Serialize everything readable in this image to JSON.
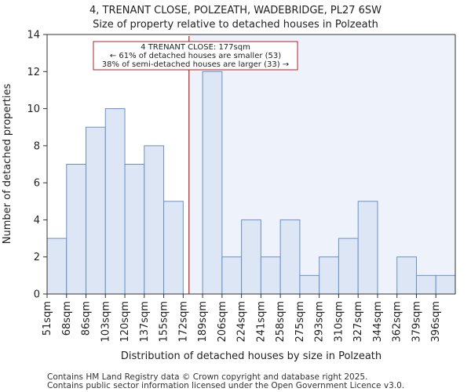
{
  "chart_data": {
    "type": "bar",
    "title": "4, TRENANT CLOSE, POLZEATH, WADEBRIDGE, PL27 6SW",
    "subtitle": "Size of property relative to detached houses in Polzeath",
    "xlabel": "Distribution of detached houses by size in Polzeath",
    "ylabel": "Number of detached properties",
    "categories": [
      "51sqm",
      "68sqm",
      "86sqm",
      "103sqm",
      "120sqm",
      "137sqm",
      "155sqm",
      "172sqm",
      "189sqm",
      "206sqm",
      "224sqm",
      "241sqm",
      "258sqm",
      "275sqm",
      "293sqm",
      "310sqm",
      "327sqm",
      "344sqm",
      "362sqm",
      "379sqm",
      "396sqm"
    ],
    "values": [
      3,
      7,
      9,
      10,
      7,
      8,
      5,
      0,
      12,
      2,
      4,
      2,
      4,
      1,
      2,
      3,
      5,
      0,
      2,
      1,
      1
    ],
    "ylim": [
      0,
      14
    ],
    "yticks": [
      0,
      2,
      4,
      6,
      8,
      10,
      12,
      14
    ],
    "grid": false,
    "colors": {
      "bar_fill": "#dce6f5",
      "bar_edge": "#6a8fc8",
      "marker_line": "#b22222",
      "shade_fill": "#eef3fb"
    },
    "marker": {
      "x_category_index": 7.3,
      "value": 177
    },
    "annotation": {
      "lines": [
        "4 TRENANT CLOSE: 177sqm",
        "← 61% of detached houses are smaller (53)",
        "38% of semi-detached houses are larger (33) →"
      ]
    }
  },
  "footer": {
    "line1": "Contains HM Land Registry data © Crown copyright and database right 2025.",
    "line2": "Contains public sector information licensed under the Open Government Licence v3.0."
  }
}
